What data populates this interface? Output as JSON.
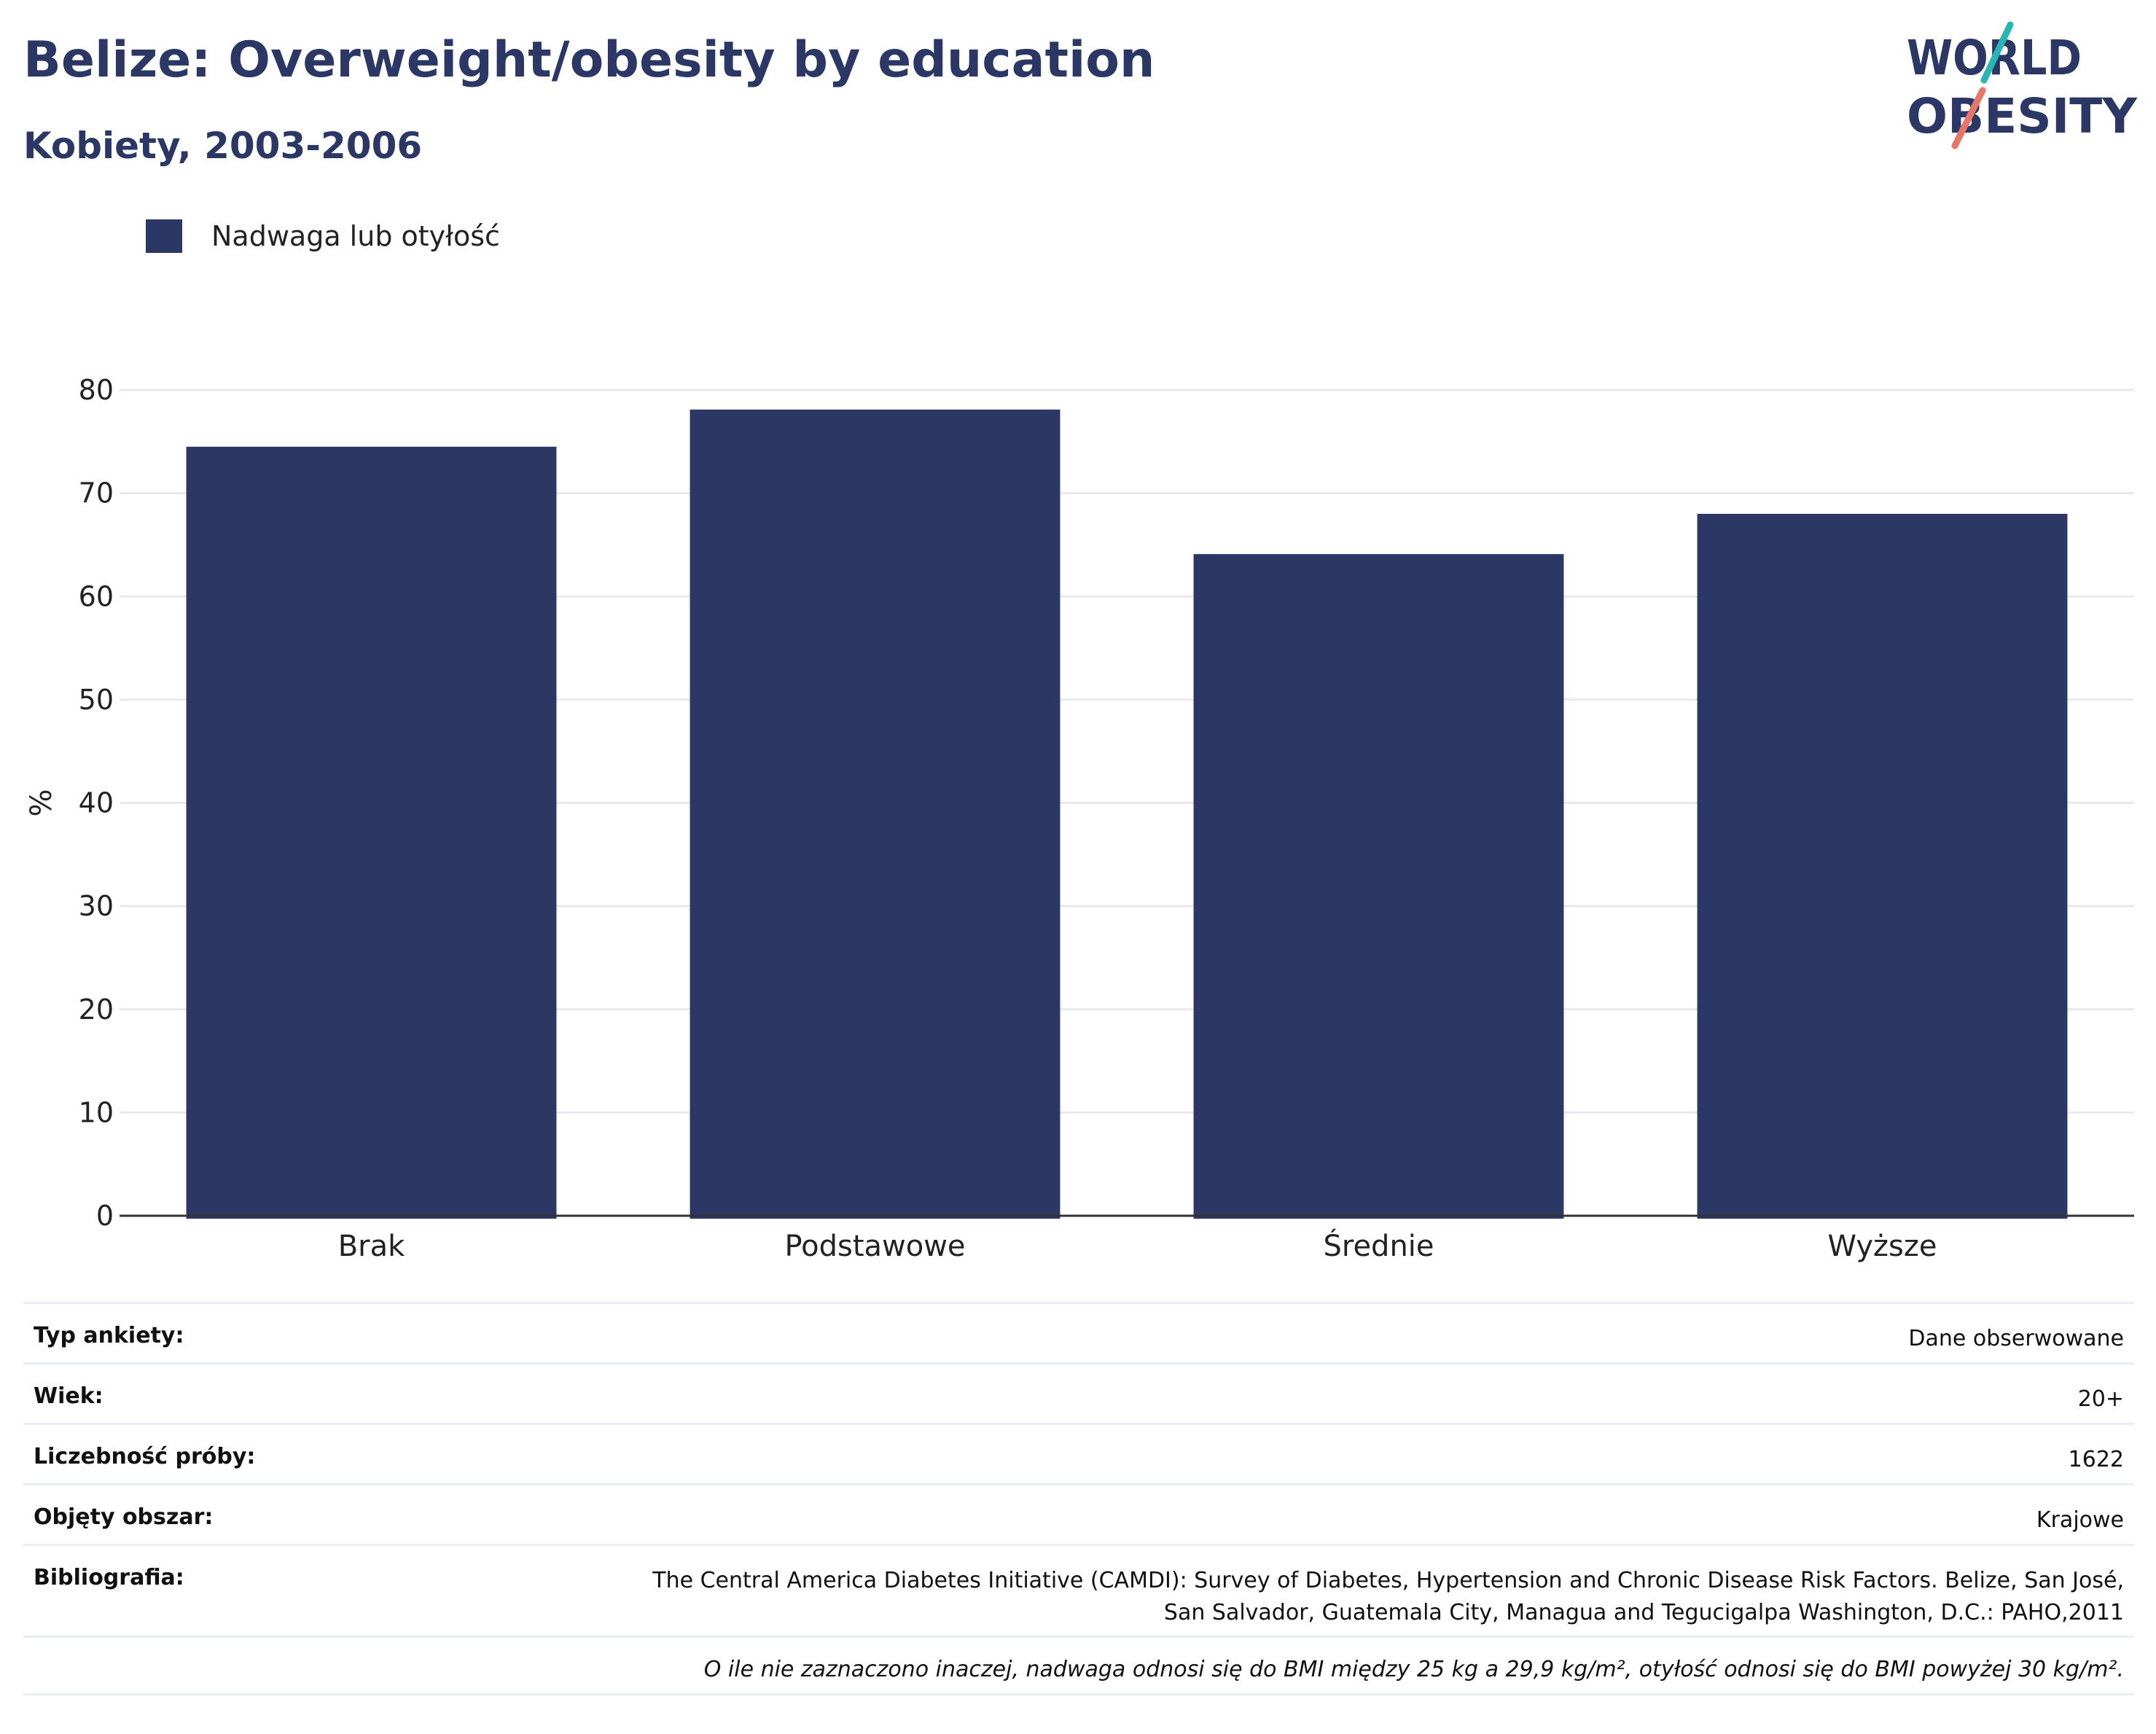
{
  "header": {
    "title": "Belize: Overweight/obesity by education",
    "subtitle": "Kobiety, 2003-2006"
  },
  "logo": {
    "line1": "WORLD",
    "line2": "OBESITY",
    "colors": {
      "text": "#2b3764",
      "slash_top": "#2ab5b5",
      "slash_bottom": "#e8756a"
    }
  },
  "chart_data": {
    "type": "bar",
    "categories": [
      "Brak",
      "Podstawowe",
      "Średnie",
      "Wyższe"
    ],
    "series": [
      {
        "name": "Nadwaga lub otyłość",
        "values": [
          74.5,
          78.1,
          64.1,
          68.0
        ],
        "color": "#2b3764"
      }
    ],
    "ylabel": "%",
    "ylim": [
      0,
      80
    ],
    "yticks": [
      0,
      10,
      20,
      30,
      40,
      50,
      60,
      70,
      80
    ],
    "grid": true,
    "legend_position": "top-left"
  },
  "info": {
    "rows": [
      {
        "key": "Typ ankiety:",
        "value": "Dane obserwowane"
      },
      {
        "key": "Wiek:",
        "value": "20+"
      },
      {
        "key": "Liczebność próby:",
        "value": "1622"
      },
      {
        "key": "Objęty obszar:",
        "value": "Krajowe"
      }
    ],
    "bibliography": {
      "key": "Bibliografia:",
      "line1": "The Central America Diabetes Initiative (CAMDI): Survey of Diabetes, Hypertension and Chronic Disease Risk Factors. Belize, San José,",
      "line2": "San Salvador, Guatemala City, Managua and Tegucigalpa Washington, D.C.: PAHO,2011"
    },
    "note": "O ile nie zaznaczono inaczej, nadwaga odnosi się do BMI między 25 kg a 29,9 kg/m², otyłość odnosi się do BMI powyżej 30 kg/m²."
  }
}
